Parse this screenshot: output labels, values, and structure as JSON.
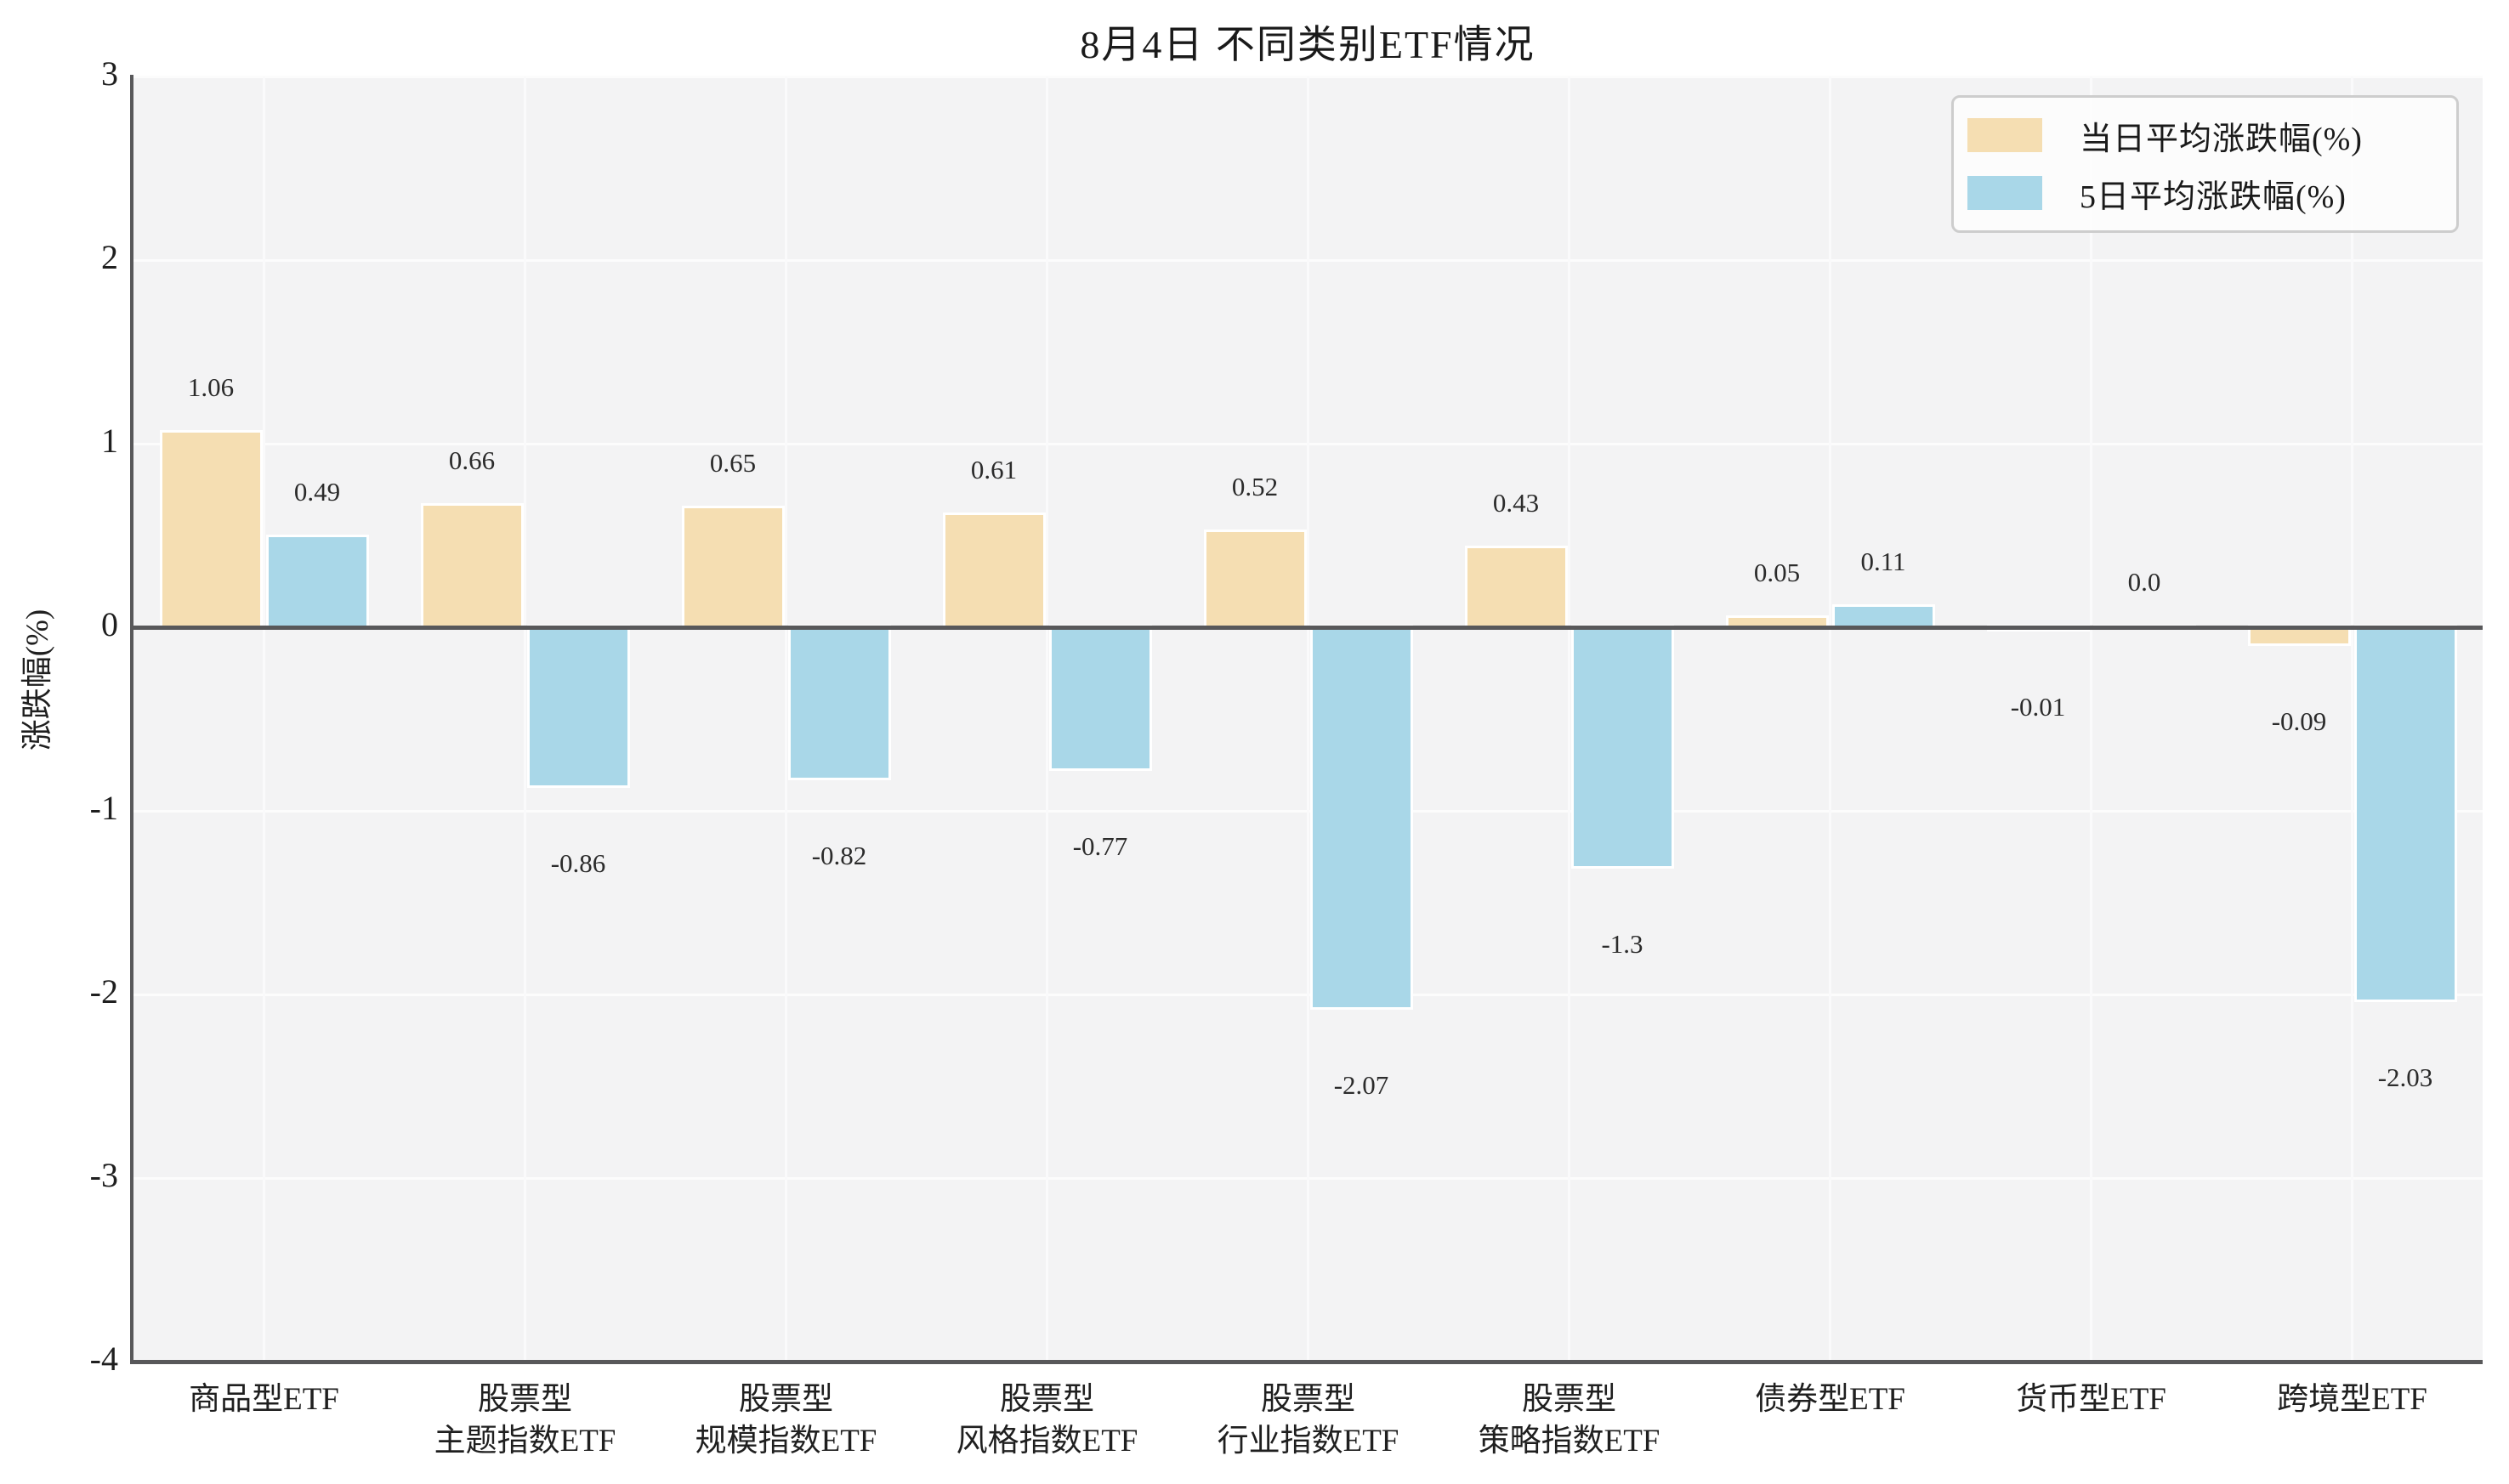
{
  "title": "8月4日 不同类别ETF情况",
  "chart_data": {
    "type": "bar",
    "categories": [
      "商品型ETF",
      "股票型\n主题指数ETF",
      "股票型\n规模指数ETF",
      "股票型\n风格指数ETF",
      "股票型\n行业指数ETF",
      "股票型\n策略指数ETF",
      "债券型ETF",
      "货币型ETF",
      "跨境型ETF"
    ],
    "series": [
      {
        "name": "当日平均涨跌幅(%)",
        "color": "#F5DEB2",
        "values": [
          1.06,
          0.66,
          0.65,
          0.61,
          0.52,
          0.43,
          0.05,
          -0.01,
          -0.09
        ],
        "labels": [
          "1.06",
          "0.66",
          "0.65",
          "0.61",
          "0.52",
          "0.43",
          "0.05",
          "-0.01",
          "-0.09"
        ]
      },
      {
        "name": "5日平均涨跌幅(%)",
        "color": "#A9D7E8",
        "values": [
          0.49,
          -0.86,
          -0.82,
          -0.77,
          -2.07,
          -1.3,
          0.11,
          0.0,
          -2.03
        ],
        "labels": [
          "0.49",
          "-0.86",
          "-0.82",
          "-0.77",
          "-2.07",
          "-1.3",
          "0.11",
          "0.0",
          "-2.03"
        ]
      }
    ],
    "xlabel": "",
    "ylabel": "涨跌幅(%)",
    "ylim": [
      -4,
      3
    ],
    "yticks": [
      "3",
      "2",
      "1",
      "0",
      "-1",
      "-2",
      "-3",
      "-4"
    ],
    "grid": true,
    "legend_position": "upper right"
  },
  "colors": {
    "plot_background": "#F3F3F4",
    "gridline": "#FCFCFC",
    "spine": "#58585A",
    "bar_day": "#F5DEB2",
    "bar_5day": "#A9D7E8",
    "text": "#1F1F1F",
    "legend_border": "#CDCDCD"
  }
}
